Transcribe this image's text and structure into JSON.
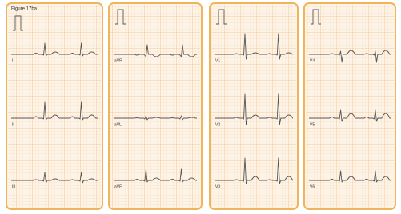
{
  "figure_label": "Figure 17ba",
  "panels": [
    {
      "leads": [
        "I",
        "II",
        "III"
      ]
    },
    {
      "leads": [
        "aVR",
        "aVL",
        "aVF"
      ]
    },
    {
      "leads": [
        "V1",
        "V2",
        "V3"
      ]
    },
    {
      "leads": [
        "V4",
        "V5",
        "V6"
      ]
    }
  ]
}
